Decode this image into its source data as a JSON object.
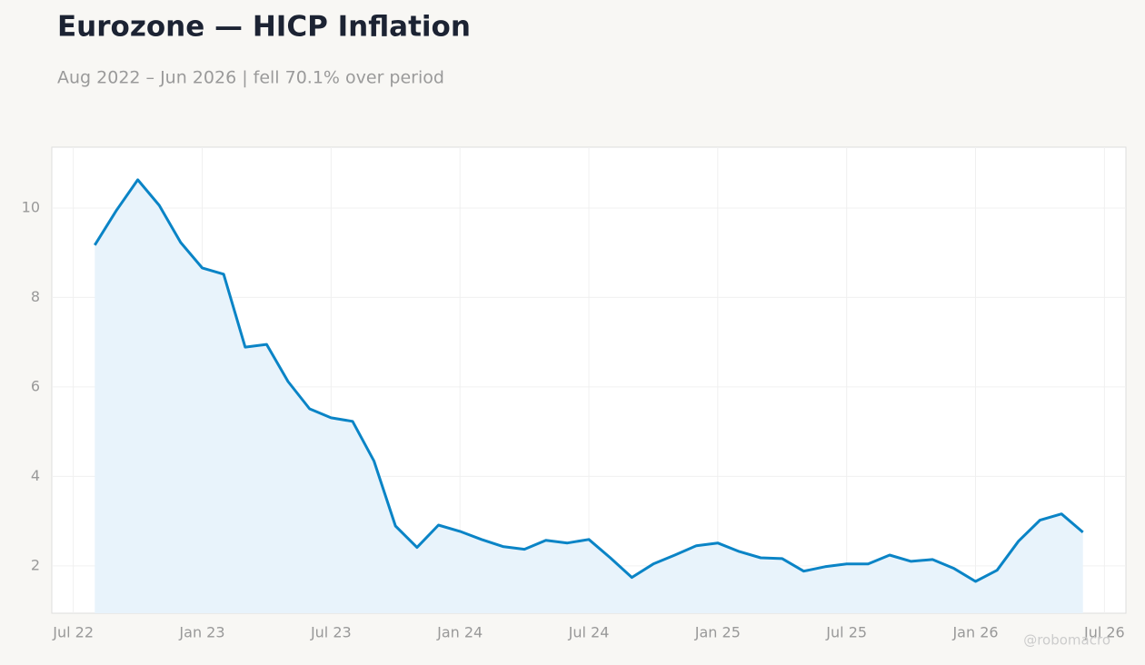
{
  "chart_data": {
    "type": "line",
    "title": "Eurozone — HICP Inflation",
    "subtitle": "Aug 2022 – Jun 2026 | fell 70.1% over period",
    "watermark": "@robomacro",
    "x": [
      "2022-08",
      "2022-09",
      "2022-10",
      "2022-11",
      "2022-12",
      "2023-01",
      "2023-02",
      "2023-03",
      "2023-04",
      "2023-05",
      "2023-06",
      "2023-07",
      "2023-08",
      "2023-09",
      "2023-10",
      "2023-11",
      "2023-12",
      "2024-01",
      "2024-02",
      "2024-03",
      "2024-04",
      "2024-05",
      "2024-06",
      "2024-07",
      "2024-08",
      "2024-09",
      "2024-10",
      "2024-11",
      "2024-12",
      "2025-01",
      "2025-02",
      "2025-03",
      "2025-04",
      "2025-05",
      "2025-06",
      "2025-07",
      "2025-08",
      "2025-09",
      "2025-10",
      "2025-11",
      "2025-12",
      "2026-01",
      "2026-02",
      "2026-03",
      "2026-04",
      "2026-05",
      "2026-06"
    ],
    "series": [
      {
        "color": "#0a84c6",
        "fill": "#e8f3fb",
        "values": [
          9.17,
          9.94,
          10.63,
          10.06,
          9.23,
          8.66,
          8.52,
          6.89,
          6.95,
          6.12,
          5.51,
          5.31,
          5.23,
          4.34,
          2.89,
          2.41,
          2.91,
          2.77,
          2.59,
          2.43,
          2.37,
          2.57,
          2.51,
          2.59,
          2.18,
          1.74,
          2.04,
          2.24,
          2.45,
          2.51,
          2.32,
          2.18,
          2.16,
          1.88,
          1.98,
          2.04,
          2.04,
          2.24,
          2.1,
          2.14,
          1.94,
          1.65,
          1.9,
          2.55,
          3.02,
          3.16,
          2.75
        ]
      }
    ],
    "xlim": [
      "2022-06",
      "2026-08"
    ],
    "xticks": [
      {
        "value": "2022-07",
        "label": "Jul 22"
      },
      {
        "value": "2023-01",
        "label": "Jan 23"
      },
      {
        "value": "2023-07",
        "label": "Jul 23"
      },
      {
        "value": "2024-01",
        "label": "Jan 24"
      },
      {
        "value": "2024-07",
        "label": "Jul 24"
      },
      {
        "value": "2025-01",
        "label": "Jan 25"
      },
      {
        "value": "2025-07",
        "label": "Jul 25"
      },
      {
        "value": "2026-01",
        "label": "Jan 26"
      },
      {
        "value": "2026-07",
        "label": "Jul 26"
      }
    ],
    "ylim": [
      0.94,
      11.36
    ],
    "yticks": [
      2,
      4,
      6,
      8,
      10
    ],
    "grid": true
  }
}
